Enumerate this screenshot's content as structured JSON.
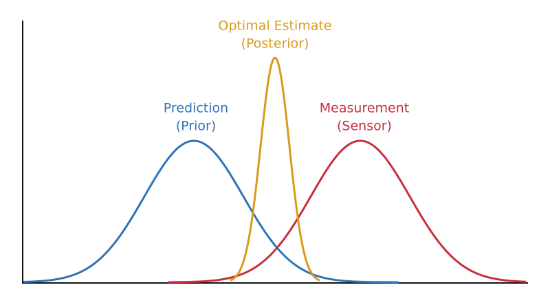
{
  "labels": {
    "posterior": {
      "title": "Optimal Estimate",
      "subtitle": "(Posterior)"
    },
    "prior": {
      "title": "Prediction",
      "subtitle": "(Prior)"
    },
    "sensor": {
      "title": "Measurement",
      "subtitle": "(Sensor)"
    }
  }
}
